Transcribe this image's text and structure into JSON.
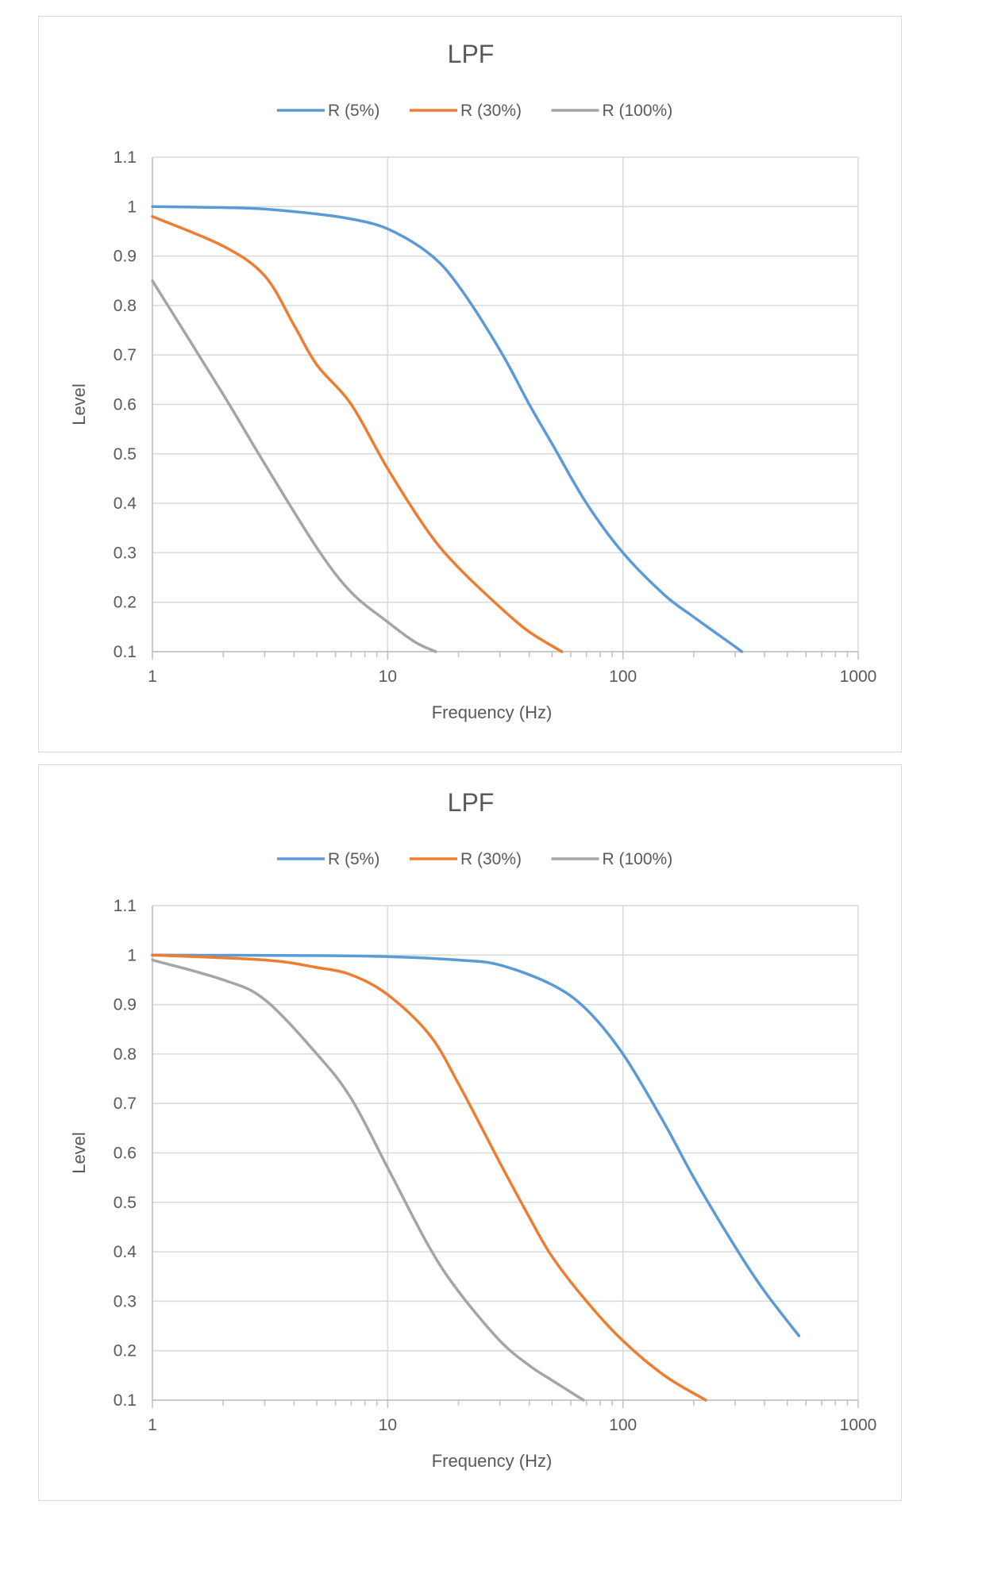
{
  "chart_data": [
    {
      "type": "line",
      "title": "LPF",
      "xlabel": "Frequency (Hz)",
      "ylabel": "Level",
      "xscale": "log",
      "xlim": [
        1,
        1000
      ],
      "ylim": [
        0.1,
        1.1
      ],
      "xticks": [
        "1",
        "10",
        "100",
        "1000"
      ],
      "yticks": [
        "0.1",
        "0.2",
        "0.3",
        "0.4",
        "0.5",
        "0.6",
        "0.7",
        "0.8",
        "0.9",
        "1",
        "1.1"
      ],
      "grid": true,
      "legend": "top",
      "series": [
        {
          "name": "R (5%)",
          "color": "#5b9bd5",
          "x": [
            1,
            2,
            3,
            5,
            7,
            10,
            15,
            20,
            30,
            40,
            50,
            70,
            100,
            150,
            200,
            300,
            320
          ],
          "y": [
            1.0,
            0.998,
            0.995,
            0.985,
            0.975,
            0.955,
            0.905,
            0.84,
            0.71,
            0.6,
            0.52,
            0.4,
            0.3,
            0.215,
            0.17,
            0.11,
            0.1
          ]
        },
        {
          "name": "R (30%)",
          "color": "#ed7d31",
          "x": [
            1,
            2,
            3,
            4,
            5,
            7,
            10,
            15,
            20,
            30,
            40,
            55
          ],
          "y": [
            0.98,
            0.92,
            0.86,
            0.76,
            0.68,
            0.6,
            0.47,
            0.34,
            0.27,
            0.19,
            0.14,
            0.1
          ]
        },
        {
          "name": "R (100%)",
          "color": "#a5a5a5",
          "x": [
            1,
            2,
            3,
            5,
            7,
            10,
            13,
            16
          ],
          "y": [
            0.85,
            0.62,
            0.48,
            0.31,
            0.22,
            0.16,
            0.12,
            0.1
          ]
        }
      ]
    },
    {
      "type": "line",
      "title": "LPF",
      "xlabel": "Frequency (Hz)",
      "ylabel": "Level",
      "xscale": "log",
      "xlim": [
        1,
        1000
      ],
      "ylim": [
        0.1,
        1.1
      ],
      "xticks": [
        "1",
        "10",
        "100",
        "1000"
      ],
      "yticks": [
        "0.1",
        "0.2",
        "0.3",
        "0.4",
        "0.5",
        "0.6",
        "0.7",
        "0.8",
        "0.9",
        "1",
        "1.1"
      ],
      "grid": true,
      "legend": "top",
      "series": [
        {
          "name": "R (5%)",
          "color": "#5b9bd5",
          "x": [
            1,
            5,
            10,
            20,
            30,
            50,
            70,
            100,
            150,
            200,
            300,
            400,
            560
          ],
          "y": [
            1.0,
            0.999,
            0.997,
            0.99,
            0.98,
            0.94,
            0.89,
            0.8,
            0.66,
            0.55,
            0.41,
            0.32,
            0.23
          ]
        },
        {
          "name": "R (30%)",
          "color": "#ed7d31",
          "x": [
            1,
            3,
            5,
            7,
            10,
            15,
            20,
            30,
            40,
            50,
            70,
            100,
            150,
            225
          ],
          "y": [
            1.0,
            0.99,
            0.975,
            0.96,
            0.92,
            0.84,
            0.74,
            0.58,
            0.47,
            0.39,
            0.3,
            0.22,
            0.15,
            0.1
          ]
        },
        {
          "name": "R (100%)",
          "color": "#a5a5a5",
          "x": [
            1,
            2,
            3,
            5,
            7,
            10,
            15,
            20,
            30,
            40,
            50,
            68
          ],
          "y": [
            0.99,
            0.95,
            0.91,
            0.8,
            0.71,
            0.57,
            0.41,
            0.32,
            0.22,
            0.17,
            0.14,
            0.1
          ]
        }
      ]
    }
  ]
}
